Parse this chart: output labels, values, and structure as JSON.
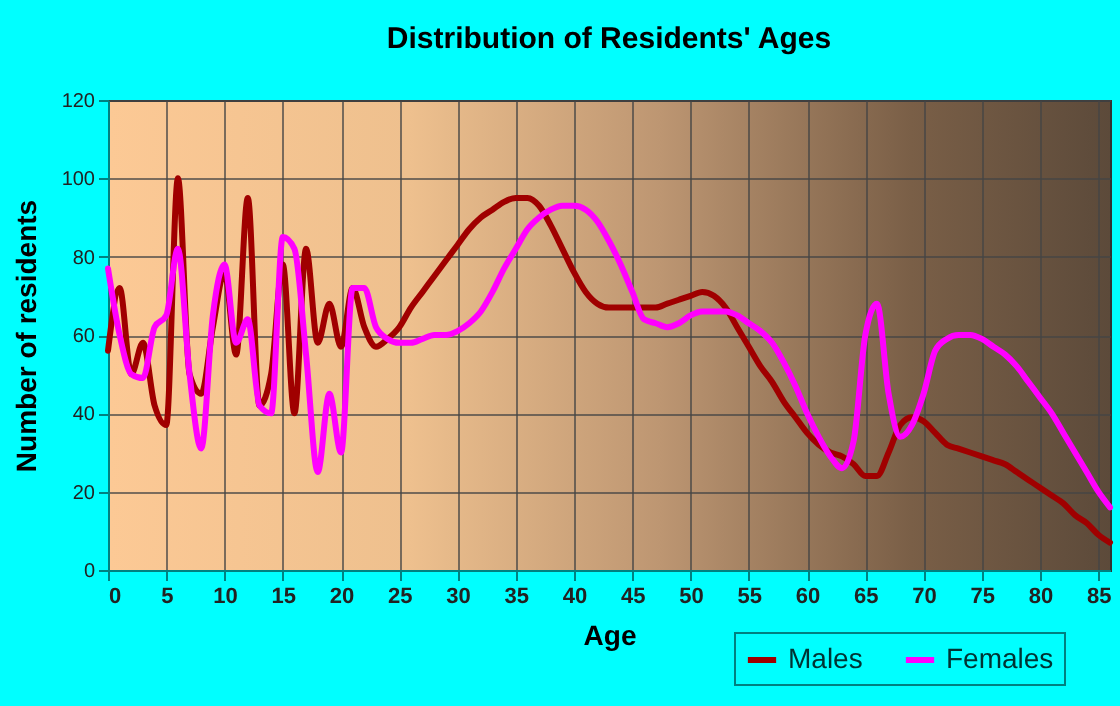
{
  "chart_data": {
    "type": "line",
    "title": "Distribution of Residents' Ages",
    "xlabel": "Age",
    "ylabel": "Number of residents",
    "x": [
      0,
      1,
      2,
      3,
      4,
      5,
      6,
      7,
      8,
      9,
      10,
      11,
      12,
      13,
      14,
      15,
      16,
      17,
      18,
      19,
      20,
      21,
      22,
      23,
      24,
      25,
      26,
      27,
      28,
      29,
      30,
      31,
      32,
      33,
      34,
      35,
      36,
      37,
      38,
      39,
      40,
      41,
      42,
      43,
      44,
      45,
      46,
      47,
      48,
      49,
      50,
      51,
      52,
      53,
      54,
      55,
      56,
      57,
      58,
      59,
      60,
      61,
      62,
      63,
      64,
      65,
      66,
      67,
      68,
      69,
      70,
      71,
      72,
      73,
      74,
      75,
      76,
      77,
      78,
      79,
      80,
      81,
      82,
      83,
      84,
      85,
      86
    ],
    "series": [
      {
        "name": "Males",
        "color": "#a00000",
        "values": [
          56,
          72,
          50,
          58,
          42,
          37,
          100,
          50,
          45,
          62,
          76,
          55,
          95,
          42,
          50,
          78,
          40,
          82,
          58,
          68,
          57,
          72,
          62,
          57,
          59,
          62,
          67,
          71,
          75,
          79,
          83,
          87,
          90,
          92,
          94,
          95,
          95,
          93,
          88,
          82,
          76,
          71,
          68,
          67,
          67,
          67,
          67,
          67,
          68,
          69,
          70,
          71,
          70,
          67,
          62,
          57,
          52,
          48,
          43,
          39,
          35,
          32,
          30,
          29,
          27,
          24,
          24,
          30,
          37,
          39,
          38,
          35,
          32,
          31,
          30,
          29,
          28,
          27,
          25,
          23,
          21,
          19,
          17,
          14,
          12,
          9,
          7
        ]
      },
      {
        "name": "Females",
        "color": "#ff00ff",
        "values": [
          77,
          60,
          50,
          49,
          62,
          65,
          82,
          50,
          31,
          65,
          78,
          58,
          64,
          42,
          40,
          85,
          82,
          55,
          25,
          45,
          30,
          72,
          72,
          62,
          59,
          58,
          58,
          59,
          60,
          60,
          61,
          63,
          66,
          71,
          77,
          82,
          87,
          90,
          92,
          93,
          93,
          92,
          89,
          84,
          78,
          71,
          64,
          63,
          62,
          63,
          65,
          66,
          66,
          66,
          65,
          63,
          61,
          58,
          53,
          47,
          40,
          34,
          29,
          26,
          33,
          60,
          68,
          45,
          34,
          37,
          45,
          56,
          59,
          60,
          60,
          59,
          57,
          55,
          52,
          48,
          44,
          40,
          35,
          30,
          25,
          20,
          16
        ]
      }
    ],
    "xlim": [
      0,
      86
    ],
    "xticks": [
      0,
      5,
      10,
      15,
      20,
      25,
      30,
      35,
      40,
      45,
      50,
      55,
      60,
      65,
      70,
      75,
      80,
      85
    ],
    "ylim": [
      0,
      120
    ],
    "yticks": [
      0,
      20,
      40,
      60,
      80,
      100,
      120
    ],
    "grid": true,
    "legend": "bottom right"
  }
}
